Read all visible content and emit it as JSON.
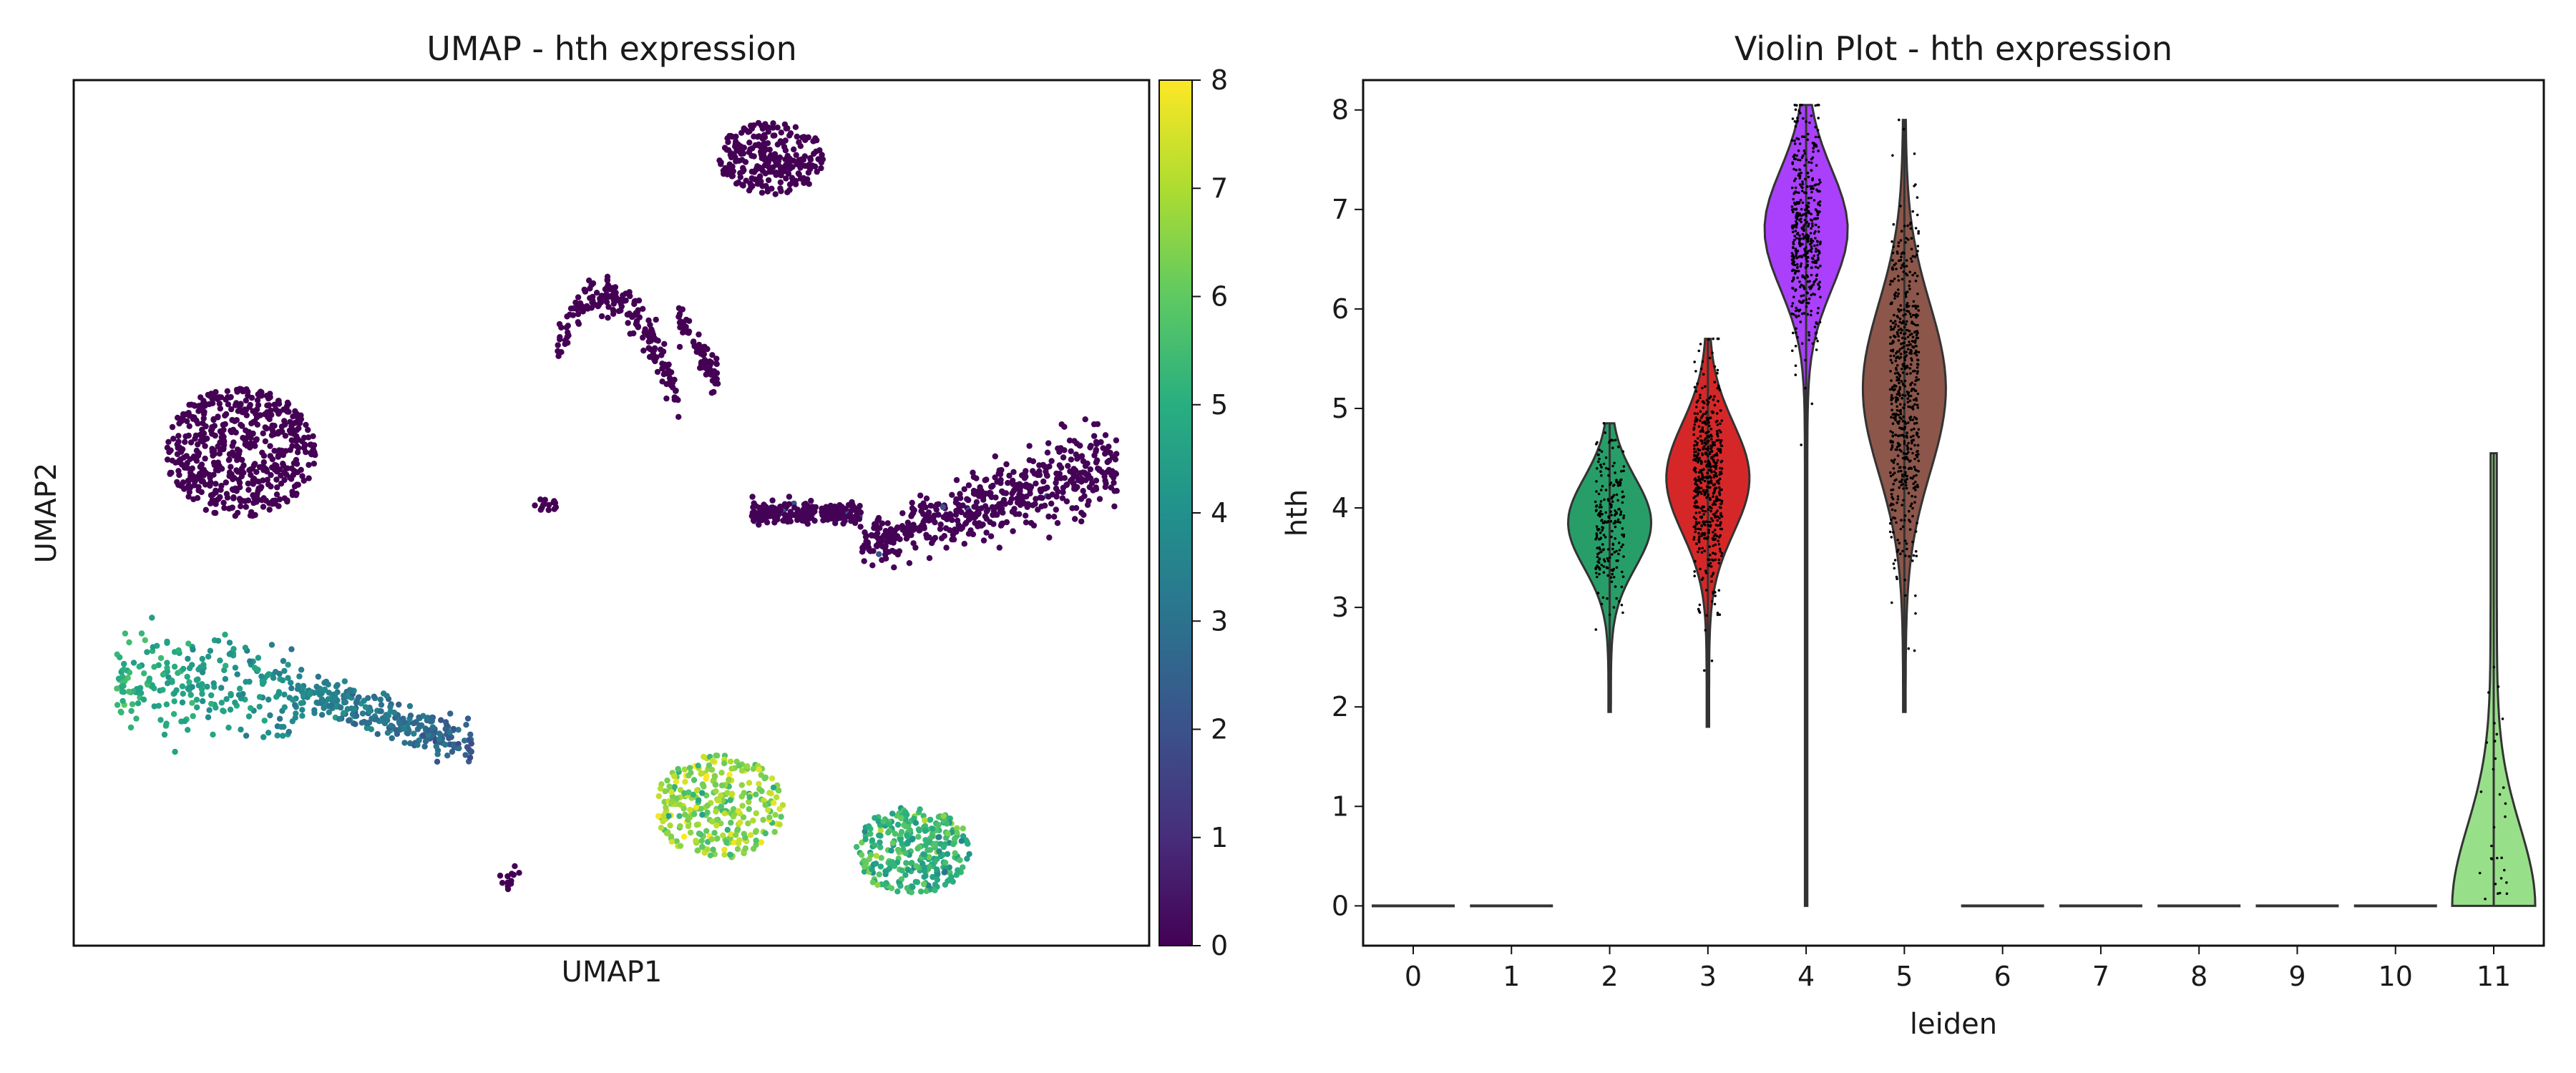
{
  "figure": {
    "charts": [
      {
        "title": "UMAP - hth expression",
        "xlabel": "UMAP1",
        "ylabel": "UMAP2"
      },
      {
        "title": "Violin Plot - hth expression",
        "xlabel": "leiden",
        "ylabel": "hth"
      }
    ]
  },
  "chart_data": [
    {
      "type": "scatter",
      "title": "UMAP - hth expression",
      "xlabel": "UMAP1",
      "ylabel": "UMAP2",
      "colormap": "viridis",
      "colorbar": {
        "min": 0,
        "max": 8,
        "ticks": [
          0,
          1,
          2,
          3,
          4,
          5,
          6,
          7,
          8
        ]
      },
      "clusters": [
        {
          "cx": 0.65,
          "cy": 0.91,
          "rx": 0.052,
          "ry": 0.042,
          "n": 260,
          "value": 0,
          "shape": "blob"
        },
        {
          "cx": 0.525,
          "cy": 0.71,
          "rx": 0.075,
          "ry": 0.028,
          "n": 260,
          "value": 0,
          "shape": "arc"
        },
        {
          "cx": 0.155,
          "cy": 0.57,
          "rx": 0.07,
          "ry": 0.075,
          "n": 560,
          "value": 0,
          "shape": "blob"
        },
        {
          "cx": 0.44,
          "cy": 0.51,
          "rx": 0.012,
          "ry": 0.008,
          "n": 14,
          "value": 0,
          "shape": "dot"
        },
        {
          "cx": 0.8,
          "cy": 0.48,
          "rx": 0.17,
          "ry": 0.07,
          "n": 760,
          "value": 0.05,
          "shape": "streak"
        },
        {
          "cx": 0.14,
          "cy": 0.3,
          "rx": 0.13,
          "ry": 0.035,
          "n": 520,
          "value": 5.1,
          "shape": "tail"
        },
        {
          "cx": 0.68,
          "cy": 0.14,
          "rx": 0.12,
          "ry": 0.075,
          "n": 620,
          "value": 6.6,
          "shape": "blob2"
        },
        {
          "cx": 0.405,
          "cy": 0.08,
          "rx": 0.01,
          "ry": 0.015,
          "n": 14,
          "value": 0,
          "shape": "dot"
        }
      ]
    },
    {
      "type": "violin",
      "title": "Violin Plot - hth expression",
      "xlabel": "leiden",
      "ylabel": "hth",
      "categories": [
        "0",
        "1",
        "2",
        "3",
        "4",
        "5",
        "6",
        "7",
        "8",
        "9",
        "10",
        "11"
      ],
      "ylim": [
        -0.4,
        8.3
      ],
      "yticks": [
        0,
        1,
        2,
        3,
        4,
        5,
        6,
        7,
        8
      ],
      "violins": [
        {
          "cluster": "0",
          "color": "#1f77b4",
          "min": 0,
          "max": 0,
          "mode": 0,
          "sd": 0,
          "n": 0
        },
        {
          "cluster": "1",
          "color": "#ff7f0e",
          "min": 0,
          "max": 0,
          "mode": 0,
          "sd": 0,
          "n": 0
        },
        {
          "cluster": "2",
          "color": "#279e68",
          "min": 1.95,
          "max": 4.85,
          "mode": 3.85,
          "sd": 0.45,
          "n": 220
        },
        {
          "cluster": "3",
          "color": "#d62728",
          "min": 1.8,
          "max": 5.7,
          "mode": 4.3,
          "sd": 0.55,
          "n": 520
        },
        {
          "cluster": "4",
          "color": "#aa40fc",
          "min": 0,
          "max": 8.05,
          "mode": 6.8,
          "sd": 0.6,
          "n": 450
        },
        {
          "cluster": "5",
          "color": "#8c564b",
          "min": 1.95,
          "max": 7.9,
          "mode": 5.2,
          "sd": 0.85,
          "n": 600
        },
        {
          "cluster": "6",
          "color": "#e377c2",
          "min": 0,
          "max": 0,
          "mode": 0,
          "sd": 0,
          "n": 0
        },
        {
          "cluster": "7",
          "color": "#b5bd61",
          "min": 0,
          "max": 0,
          "mode": 0,
          "sd": 0,
          "n": 0
        },
        {
          "cluster": "8",
          "color": "#17becf",
          "min": 0,
          "max": 0,
          "mode": 0,
          "sd": 0,
          "n": 0
        },
        {
          "cluster": "9",
          "color": "#aec7e8",
          "min": 0,
          "max": 0,
          "mode": 0,
          "sd": 0,
          "n": 0
        },
        {
          "cluster": "10",
          "color": "#ffbb78",
          "min": 0,
          "max": 0,
          "mode": 0,
          "sd": 0,
          "n": 0
        },
        {
          "cluster": "11",
          "color": "#98df8a",
          "min": 0,
          "max": 4.55,
          "mode": 0,
          "sd": 0.8,
          "n": 30
        }
      ]
    }
  ]
}
